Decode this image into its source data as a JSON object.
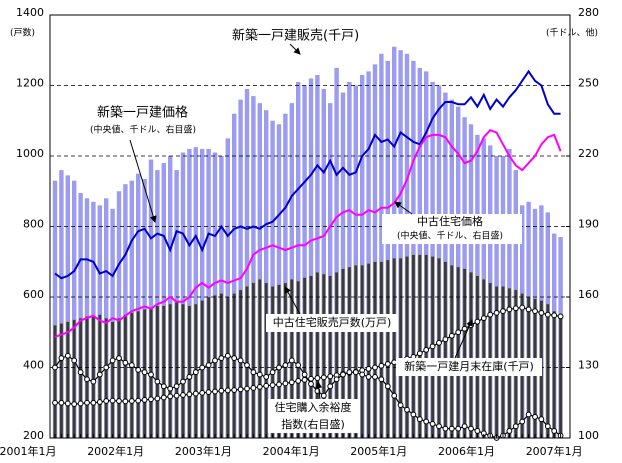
{
  "chart_data": {
    "type": "bar",
    "ylabel": "(戸数)",
    "y2label": "(千ドル、他)",
    "ylim": [
      200,
      1400
    ],
    "yticks": [
      200,
      400,
      600,
      800,
      1000,
      1200,
      1400
    ],
    "y2lim": [
      100,
      280
    ],
    "y2ticks": [
      100,
      130,
      160,
      190,
      220,
      250,
      280
    ],
    "grid": true,
    "categories": [
      "2001年1月",
      null,
      null,
      null,
      null,
      null,
      null,
      null,
      null,
      null,
      null,
      null,
      "2002年1月",
      null,
      null,
      null,
      null,
      null,
      null,
      null,
      null,
      null,
      null,
      null,
      "2003年1月",
      null,
      null,
      null,
      null,
      null,
      null,
      null,
      null,
      null,
      null,
      null,
      "2004年1月",
      null,
      null,
      null,
      null,
      null,
      null,
      null,
      null,
      null,
      null,
      null,
      "2005年1月",
      null,
      null,
      null,
      null,
      null,
      null,
      null,
      null,
      null,
      null,
      null,
      "2006年1月",
      null,
      null,
      null,
      null,
      null,
      null,
      null,
      null,
      null,
      null,
      null,
      "2007年1月",
      null,
      null,
      null,
      null,
      null,
      null,
      null
    ],
    "series": [
      {
        "name": "新築一戸建販売(千戸)",
        "type": "bar",
        "color": "#9b9bef",
        "values": [
          930,
          960,
          945,
          930,
          895,
          880,
          870,
          860,
          880,
          850,
          900,
          920,
          930,
          950,
          935,
          990,
          960,
          980,
          1000,
          960,
          1010,
          1020,
          1025,
          1020,
          1020,
          1010,
          1000,
          1050,
          1120,
          1160,
          1190,
          1170,
          1150,
          1130,
          1100,
          1090,
          1120,
          1150,
          1210,
          1200,
          1220,
          1230,
          1190,
          1150,
          1250,
          1180,
          1210,
          1200,
          1230,
          1240,
          1260,
          1290,
          1270,
          1310,
          1300,
          1290,
          1270,
          1250,
          1240,
          1210,
          1200,
          1180,
          1160,
          1140,
          1110,
          1090,
          1060,
          1050,
          1030,
          1000,
          1000,
          1020,
          960,
          860,
          870,
          850,
          860,
          840,
          780,
          770
        ]
      },
      {
        "name": "中古住宅販売戸数(万戸)",
        "type": "bar",
        "color": "#3a3a3a",
        "values": [
          520,
          525,
          530,
          535,
          540,
          545,
          545,
          550,
          540,
          530,
          540,
          550,
          555,
          560,
          565,
          570,
          575,
          575,
          580,
          585,
          580,
          575,
          580,
          590,
          600,
          605,
          610,
          600,
          610,
          620,
          630,
          640,
          650,
          640,
          630,
          635,
          640,
          650,
          645,
          655,
          660,
          670,
          665,
          660,
          670,
          680,
          685,
          690,
          690,
          695,
          700,
          700,
          705,
          710,
          710,
          715,
          720,
          720,
          720,
          715,
          710,
          700,
          690,
          685,
          680,
          670,
          660,
          650,
          640,
          630,
          630,
          625,
          620,
          610,
          600,
          595,
          590,
          580,
          560,
          545
        ]
      },
      {
        "name": "新築一戸建価格",
        "note": "(中央値、千ドル、右目盛)",
        "type": "line",
        "axis": "y2",
        "color": "#0000cc",
        "values": [
          170,
          168,
          169,
          171,
          176,
          176,
          175,
          170,
          171,
          169,
          174,
          178,
          184,
          188,
          189,
          185,
          187,
          186,
          180,
          188,
          187,
          182,
          186,
          180,
          187,
          186,
          190,
          186,
          189,
          190,
          189,
          190,
          189,
          191,
          192,
          195,
          198,
          203,
          206,
          209,
          212,
          216,
          213,
          218,
          212,
          215,
          212,
          213,
          220,
          223,
          229,
          226,
          227,
          224,
          230,
          228,
          226,
          225,
          230,
          236,
          240,
          243,
          243,
          242,
          242,
          245,
          241,
          246,
          240,
          244,
          241,
          245,
          248,
          252,
          256,
          252,
          250,
          242,
          238,
          238
        ]
      },
      {
        "name": "中古住宅価格",
        "note": "(中央値、千ドル、右目盛)",
        "type": "line",
        "axis": "y2",
        "color": "#ff00ff",
        "values": [
          143,
          144,
          145,
          147,
          150,
          151,
          152,
          150,
          149,
          151,
          150,
          152,
          154,
          155,
          156,
          155,
          157,
          158,
          160,
          158,
          158,
          160,
          164,
          166,
          164,
          166,
          167,
          166,
          167,
          168,
          172,
          178,
          180,
          181,
          182,
          181,
          180,
          181,
          182,
          182,
          184,
          185,
          186,
          190,
          194,
          196,
          197,
          195,
          195,
          197,
          196,
          198,
          198,
          200,
          204,
          210,
          218,
          224,
          228,
          229,
          229,
          228,
          224,
          221,
          217,
          218,
          222,
          228,
          231,
          230,
          225,
          220,
          216,
          214,
          217,
          220,
          225,
          228,
          229,
          222
        ]
      },
      {
        "name": "新築一戸建月末在庫(千戸)",
        "type": "line",
        "marker": "circle",
        "color": "#000000",
        "values": [
          300,
          300,
          298,
          296,
          298,
          300,
          300,
          302,
          305,
          306,
          305,
          304,
          305,
          306,
          308,
          310,
          312,
          315,
          318,
          320,
          322,
          324,
          326,
          328,
          330,
          332,
          334,
          335,
          336,
          338,
          340,
          342,
          345,
          348,
          350,
          352,
          355,
          358,
          362,
          365,
          368,
          370,
          372,
          375,
          378,
          382,
          385,
          388,
          392,
          396,
          400,
          405,
          410,
          415,
          420,
          425,
          430,
          440,
          450,
          460,
          470,
          480,
          490,
          500,
          510,
          520,
          530,
          540,
          550,
          555,
          560,
          565,
          568,
          570,
          565,
          560,
          555,
          550,
          548,
          545
        ]
      },
      {
        "name": "住宅購入余裕度",
        "note": "指数(右目盛)",
        "type": "line",
        "marker": "circle",
        "axis": "y2",
        "color": "#000000",
        "values": [
          130,
          134,
          135,
          133,
          128,
          125,
          124,
          127,
          130,
          133,
          134,
          132,
          131,
          129,
          128,
          127,
          124,
          122,
          121,
          122,
          124,
          126,
          128,
          130,
          131,
          133,
          134,
          135,
          134,
          133,
          131,
          128,
          127,
          126,
          128,
          130,
          131,
          133,
          131,
          127,
          123,
          120,
          118,
          122,
          125,
          127,
          128,
          128,
          127,
          126,
          126,
          125,
          122,
          118,
          114,
          112,
          110,
          108,
          107,
          106,
          105,
          104,
          104,
          104,
          105,
          104,
          103,
          102,
          101,
          100,
          101,
          103,
          105,
          107,
          110,
          109,
          108,
          105,
          103,
          101
        ]
      }
    ]
  }
}
